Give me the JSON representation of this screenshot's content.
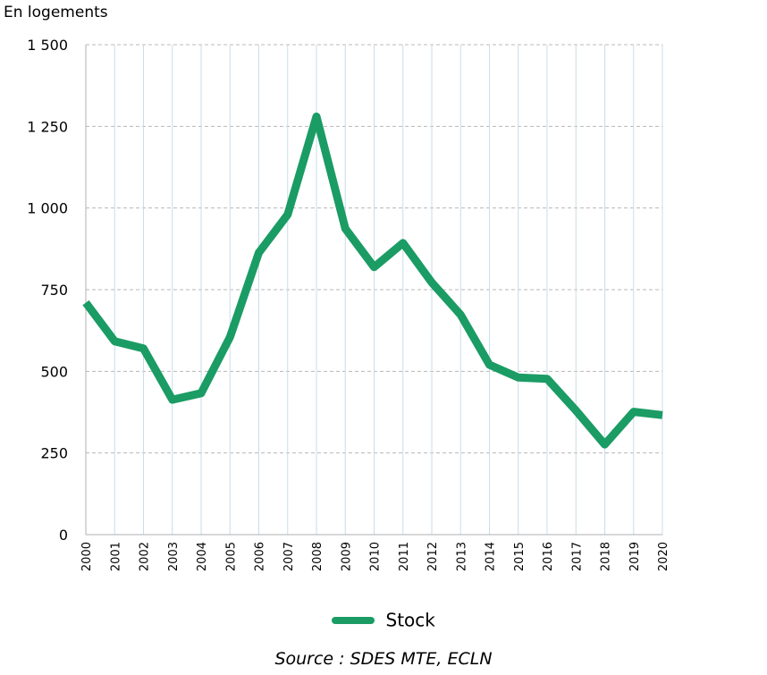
{
  "chart_data": {
    "type": "line",
    "ylabel": "En logements",
    "ylim": [
      0,
      1500
    ],
    "yticks": [
      0,
      250,
      500,
      750,
      1000,
      1250,
      1500
    ],
    "ytick_labels": [
      "0",
      "250",
      "500",
      "750",
      "1 000",
      "1 250",
      "1 500"
    ],
    "x": [
      "2000",
      "2001",
      "2002",
      "2003",
      "2004",
      "2005",
      "2006",
      "2007",
      "2008",
      "2009",
      "2010",
      "2011",
      "2012",
      "2013",
      "2014",
      "2015",
      "2016",
      "2017",
      "2018",
      "2019",
      "2020"
    ],
    "series": [
      {
        "name": "Stock",
        "color": "#1a9c64",
        "values": [
          710,
          592,
          570,
          413,
          433,
          605,
          863,
          980,
          1280,
          937,
          819,
          893,
          772,
          673,
          520,
          481,
          477,
          380,
          276,
          376,
          366
        ]
      }
    ],
    "grid": true,
    "legend": "bottom-center"
  },
  "source": "Source : SDES MTE, ECLN"
}
